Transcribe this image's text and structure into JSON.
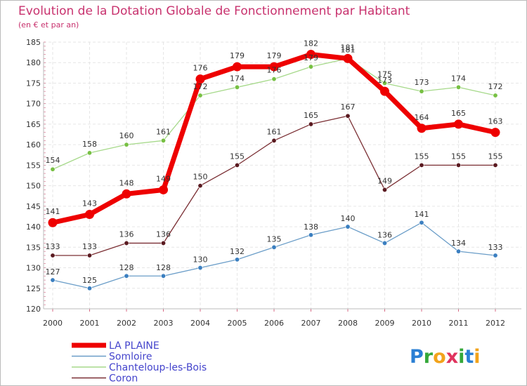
{
  "chart_data": {
    "type": "line",
    "title": "Evolution de la Dotation Globale de Fonctionnement par Habitant",
    "subtitle": "(en € et par an)",
    "xlabel": "",
    "ylabel": "",
    "x": [
      "2000",
      "2001",
      "2002",
      "2003",
      "2004",
      "2005",
      "2006",
      "2007",
      "2008",
      "2009",
      "2010",
      "2011",
      "2012"
    ],
    "ylim": [
      120,
      185
    ],
    "yticks": [
      120,
      125,
      130,
      135,
      140,
      145,
      150,
      155,
      160,
      165,
      170,
      175,
      180,
      185
    ],
    "grid": true,
    "legend_position": "bottom-left",
    "series": [
      {
        "name": "Somloire",
        "color": "#6a9dc8",
        "point_color": "#3b7fc0",
        "values": [
          127,
          125,
          128,
          128,
          130,
          132,
          135,
          138,
          140,
          136,
          141,
          134,
          133
        ]
      },
      {
        "name": "Chanteloup-les-Bois",
        "color": "#a6d98a",
        "point_color": "#77c043",
        "values": [
          154,
          158,
          160,
          161,
          172,
          174,
          176,
          179,
          181,
          175,
          173,
          174,
          172
        ]
      },
      {
        "name": "Coron",
        "color": "#7a2e33",
        "point_color": "#5a1a20",
        "values": [
          133,
          133,
          136,
          136,
          150,
          155,
          161,
          165,
          167,
          149,
          155,
          155,
          155
        ]
      },
      {
        "name": "LA PLAINE",
        "color": "#ee0000",
        "point_color": "#ee0000",
        "values": [
          141,
          143,
          148,
          149,
          176,
          179,
          179,
          182,
          181,
          173,
          164,
          165,
          163
        ]
      }
    ]
  },
  "legend": {
    "items": [
      "LA PLAINE",
      "Somloire",
      "Chanteloup-les-Bois",
      "Coron"
    ]
  },
  "logo": {
    "text": "Proxiti"
  }
}
